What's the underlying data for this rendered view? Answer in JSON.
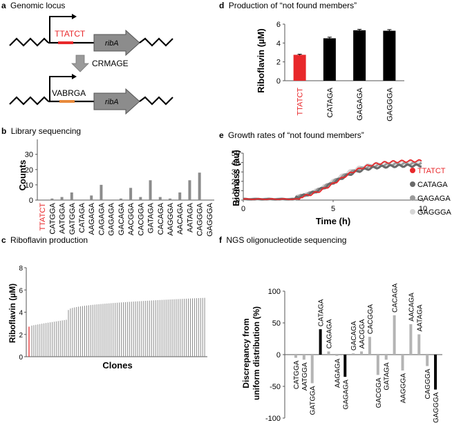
{
  "colors": {
    "red": "#e8282b",
    "orange": "#e88a3c",
    "black": "#000000",
    "grey": "#8c8c8c",
    "lightgrey": "#b4b4b4",
    "dark": "#6a6a6a",
    "mid": "#9a9a9a",
    "pale": "#d6d6d6"
  },
  "panel_a": {
    "letter": "a",
    "title": "Genomic locus",
    "seq_top": "TTATCT",
    "gene_top": "ribA",
    "arrow_label": "CRMAGE",
    "seq_bottom": "VABRGA",
    "gene_bottom": "ribA"
  },
  "panel_b": {
    "letter": "b",
    "title": "Library sequencing",
    "chart_data": {
      "type": "bar",
      "ylabel": "Counts",
      "ylim": [
        0,
        38
      ],
      "yticks": [
        0,
        10,
        20,
        30
      ],
      "categories": [
        "TTATCT",
        "CATGGA",
        "AATGGA",
        "GATGGA",
        "CATAGA",
        "AAGAGA",
        "CAGAGA",
        "GAGAGA",
        "GACAGA",
        "AACGGA",
        "CACGGA",
        "GATAGA",
        "CACAGA",
        "AAGGGA",
        "AACAGA",
        "AATAGA",
        "CAGGGA",
        "GAGGGA"
      ],
      "values": [
        0,
        1,
        2,
        5,
        0,
        3,
        10,
        0,
        1,
        8,
        2,
        13,
        2,
        1,
        5,
        13,
        18,
        0
      ],
      "highlight_index": 0
    }
  },
  "panel_c": {
    "letter": "c",
    "title": "Riboflavin production",
    "chart_data": {
      "type": "bar",
      "ylabel": "Riboflavin (µM)",
      "xlabel": "Clones",
      "ylim": [
        0,
        8
      ],
      "yticks": [
        0,
        2,
        4,
        6,
        8
      ],
      "n_clones": 86,
      "reference_value": 2.7,
      "range_low": [
        2.8,
        3.0
      ],
      "range_mid": [
        3.0,
        3.35
      ],
      "step_at": 18,
      "range_high": [
        4.2,
        5.3
      ]
    }
  },
  "panel_d": {
    "letter": "d",
    "title": "Production of “not found members”",
    "chart_data": {
      "type": "bar",
      "ylabel": "Riboflavin (µM)",
      "ylim": [
        0,
        6
      ],
      "yticks": [
        0,
        2,
        4,
        6
      ],
      "categories": [
        "TTATCT",
        "CATAGA",
        "GAGAGA",
        "GAGGGA"
      ],
      "values": [
        2.75,
        4.5,
        5.35,
        5.3
      ],
      "errors": [
        0.06,
        0.12,
        0.1,
        0.12
      ],
      "highlight_index": 0
    }
  },
  "panel_e": {
    "letter": "e",
    "title": "Growth rates of “not found members”",
    "chart_data": {
      "type": "line",
      "ylabel": "Biomass (au)",
      "xlabel": "Time (h)",
      "xlim": [
        0,
        10
      ],
      "ylim": [
        0,
        50
      ],
      "xticks": [
        0,
        5,
        10
      ],
      "yticks": [
        0,
        10,
        20,
        30,
        40,
        50
      ],
      "series": [
        {
          "name": "TTATCT",
          "lag": 3.2,
          "plateau": 42
        },
        {
          "name": "CATAGA",
          "lag": 2.9,
          "plateau": 37
        },
        {
          "name": "GAGAGA",
          "lag": 2.9,
          "plateau": 39
        },
        {
          "name": "GAGGGA",
          "lag": 2.9,
          "plateau": 41
        }
      ]
    }
  },
  "panel_f": {
    "letter": "f",
    "title": "NGS oligonucleotide sequencing",
    "chart_data": {
      "type": "bar",
      "ylabel_line1": "Discrepancy from",
      "ylabel_line2": "uniform distribution (%)",
      "ylim": [
        -100,
        100
      ],
      "yticks": [
        -100,
        -50,
        0,
        50,
        100
      ],
      "categories": [
        "CATGGA",
        "AATGGA",
        "GATGGA",
        "CATAGA",
        "CAGAGA",
        "AAGAGA",
        "GAGAGA",
        "GACAGA",
        "AACGGA",
        "CACGGA",
        "GACGGA",
        "GATAGA",
        "CACAGA",
        "AAGGGA",
        "AACAGA",
        "AATAGA",
        "CAGGGA",
        "GAGGGA"
      ],
      "values": [
        -5,
        -8,
        -45,
        40,
        5,
        -2,
        -35,
        2,
        5,
        28,
        -32,
        -8,
        62,
        -25,
        48,
        32,
        -18,
        -55
      ],
      "highlight": [
        "CATAGA",
        "GAGAGA",
        "GAGGGA"
      ]
    }
  }
}
